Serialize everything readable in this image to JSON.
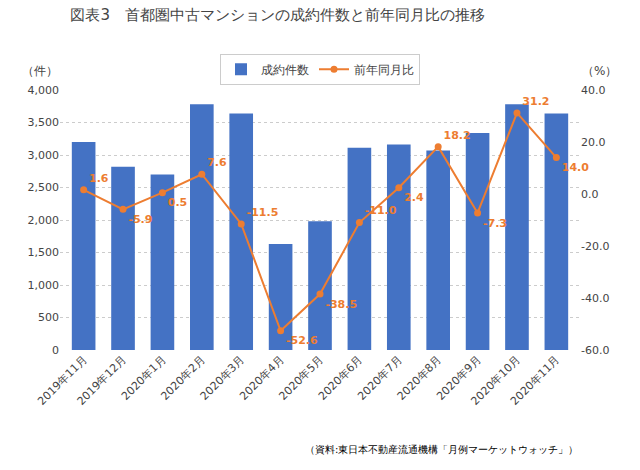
{
  "chart_data": {
    "type": "bar",
    "title": "図表3　首都圏中古マンションの成約件数と前年同月比の推移",
    "categories": [
      "2019年11月",
      "2019年12月",
      "2020年1月",
      "2020年2月",
      "2020年3月",
      "2020年4月",
      "2020年5月",
      "2020年6月",
      "2020年7月",
      "2020年8月",
      "2020年9月",
      "2020年10月",
      "2020年11月"
    ],
    "series": [
      {
        "name": "成約件数",
        "type": "bar",
        "color": "#4472C4",
        "values": [
          3200,
          2820,
          2700,
          3780,
          3640,
          1630,
          1980,
          3110,
          3160,
          3070,
          3340,
          3780,
          3640
        ]
      },
      {
        "name": "前年同月比",
        "type": "line",
        "axis": "y2",
        "color": "#ED7D31",
        "marker": "circle",
        "data_labels": true,
        "values": [
          1.6,
          -5.9,
          0.5,
          7.6,
          -11.5,
          -52.6,
          -38.5,
          -11.0,
          2.4,
          18.2,
          -7.3,
          31.2,
          14.0
        ],
        "value_labels": [
          "1.6",
          "-5.9",
          "0.5",
          "7.6",
          "-11.5",
          "-52.6",
          "-38.5",
          "-11.0",
          "2.4",
          "18.2",
          "-7.3",
          "31.2",
          "14.0"
        ]
      }
    ],
    "ylabel": "（件）",
    "y2label": "（%）",
    "ylim": [
      0,
      4000
    ],
    "yticks": [
      0,
      500,
      {
        "value": 1000,
        "label": "1,000"
      },
      {
        "value": 1500,
        "label": "1,500"
      },
      {
        "value": 2000,
        "label": "2,000"
      },
      {
        "value": 2500,
        "label": "2,500"
      },
      {
        "value": 3000,
        "label": "3,000"
      },
      {
        "value": 3500,
        "label": "3,500"
      },
      {
        "value": 4000,
        "label": "4,000"
      }
    ],
    "y2lim": [
      -60,
      40
    ],
    "y2ticks": [
      {
        "value": -60,
        "label": "-60.0"
      },
      {
        "value": -40,
        "label": "-40.0"
      },
      {
        "value": -20,
        "label": "-20.0"
      },
      {
        "value": 0,
        "label": "0.0"
      },
      {
        "value": 20,
        "label": "20.0"
      },
      {
        "value": 40,
        "label": "40.0"
      }
    ],
    "grid": true,
    "legend": "top",
    "annotations": [
      "（資料:東日本不動産流通機構「月例マーケットウォッチ」）"
    ]
  }
}
